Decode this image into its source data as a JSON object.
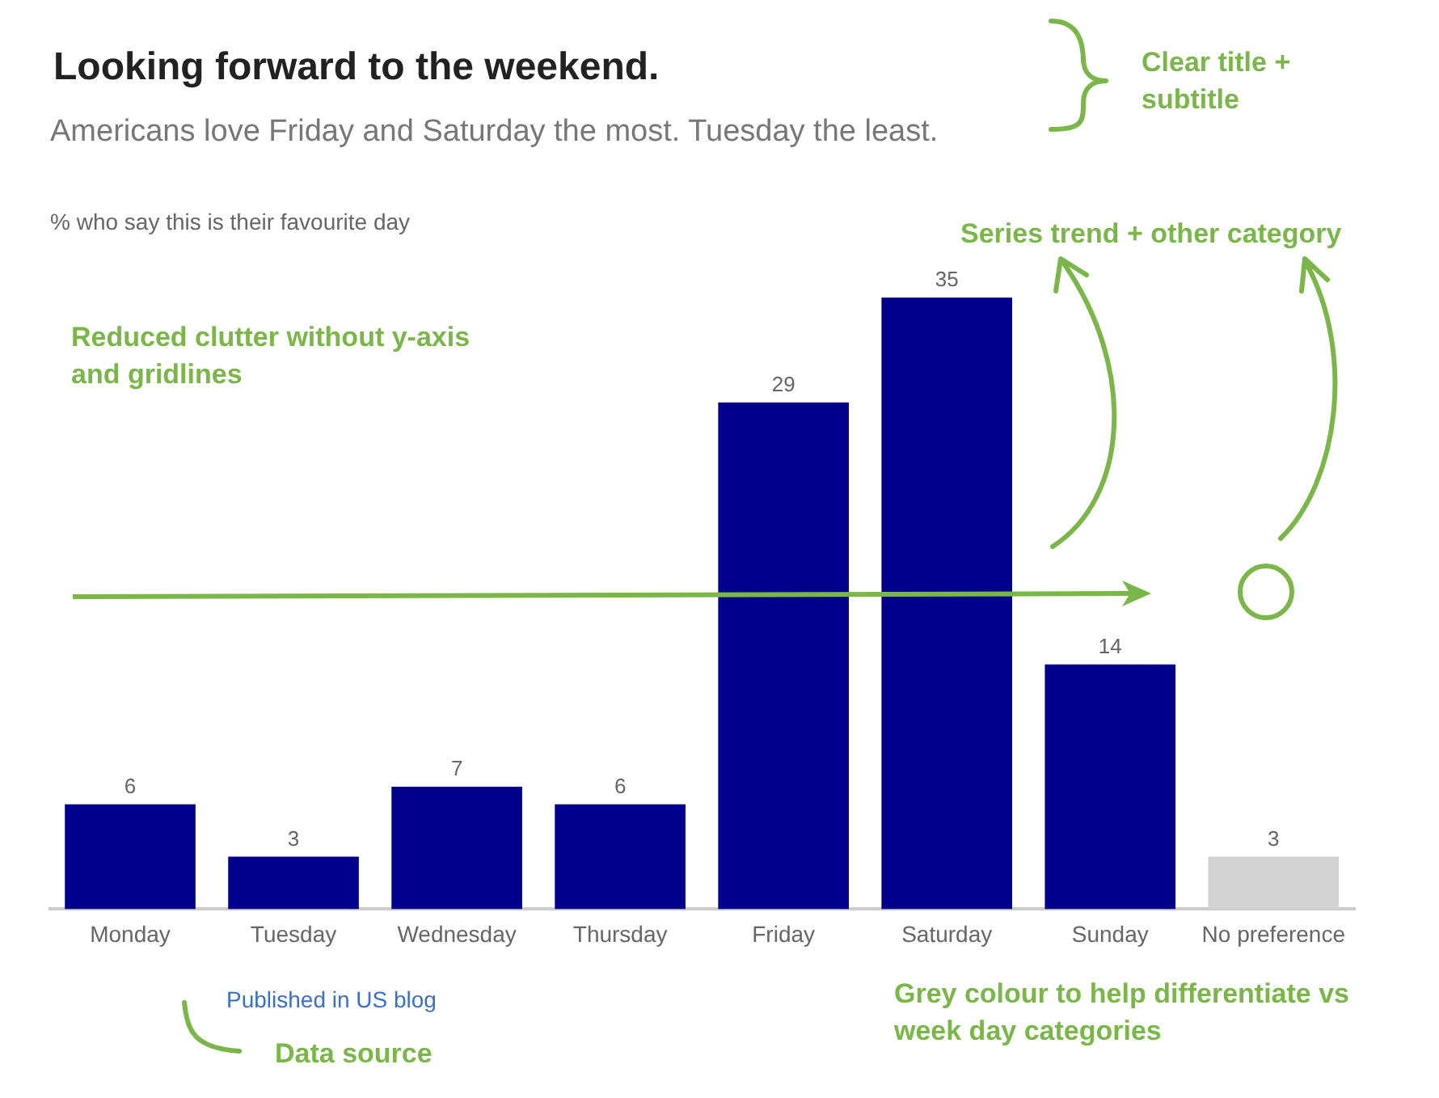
{
  "chart_data": {
    "type": "bar",
    "title": "Looking forward to the weekend.",
    "subtitle": "Americans love Friday and Saturday the most. Tuesday the least.",
    "ylabel": "% who say this is their favourite day",
    "categories": [
      "Monday",
      "Tuesday",
      "Wednesday",
      "Thursday",
      "Friday",
      "Saturday",
      "Sunday",
      "No preference"
    ],
    "values": [
      6,
      3,
      7,
      6,
      29,
      35,
      14,
      3
    ],
    "colors": [
      "#00008c",
      "#00008c",
      "#00008c",
      "#00008c",
      "#00008c",
      "#00008c",
      "#00008c",
      "#d3d3d3"
    ],
    "data_labels": true,
    "grid": false,
    "legend": false,
    "tick_labels": "x",
    "annotations": [
      "Published in US blog",
      "Clear title + subtitle",
      "Reduced clutter without y-axis and gridlines",
      "Series trend + other category",
      "Grey colour to help differentiate vs week day categories",
      "Data source"
    ]
  }
}
